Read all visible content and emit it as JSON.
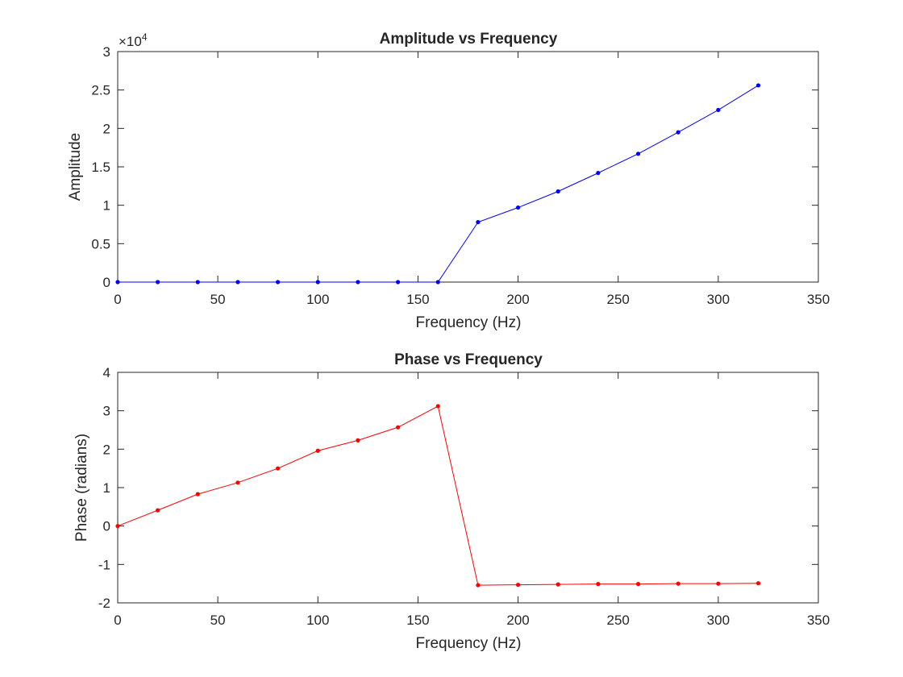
{
  "chart_data": [
    {
      "type": "line",
      "title": "Amplitude vs Frequency",
      "xlabel": "Frequency (Hz)",
      "ylabel": "Amplitude",
      "xlim": [
        0,
        350
      ],
      "ylim": [
        0,
        30000
      ],
      "x_ticks": [
        0,
        50,
        100,
        150,
        200,
        250,
        300,
        350
      ],
      "x_tick_labels": [
        "0",
        "50",
        "100",
        "150",
        "200",
        "250",
        "300",
        "350"
      ],
      "y_ticks": [
        0,
        5000,
        10000,
        15000,
        20000,
        25000,
        30000
      ],
      "y_tick_labels": [
        "0",
        "0.5",
        "1",
        "1.5",
        "2",
        "2.5",
        "3"
      ],
      "y_multiplier_label": "×10",
      "y_multiplier_exponent": "4",
      "grid": false,
      "marker": "dot",
      "color": "#0000ff",
      "series": [
        {
          "x": [
            0,
            20,
            40,
            60,
            80,
            100,
            120,
            140,
            160,
            180,
            200,
            220,
            240,
            260,
            280,
            300,
            320
          ],
          "values": [
            0,
            0,
            0,
            0,
            0,
            0,
            0,
            0,
            0,
            7800,
            9700,
            11800,
            14200,
            16700,
            19500,
            22400,
            25600
          ]
        }
      ]
    },
    {
      "type": "line",
      "title": "Phase vs Frequency",
      "xlabel": "Frequency (Hz)",
      "ylabel": "Phase (radians)",
      "xlim": [
        0,
        350
      ],
      "ylim": [
        -2,
        4
      ],
      "x_ticks": [
        0,
        50,
        100,
        150,
        200,
        250,
        300,
        350
      ],
      "x_tick_labels": [
        "0",
        "50",
        "100",
        "150",
        "200",
        "250",
        "300",
        "350"
      ],
      "y_ticks": [
        -2,
        -1,
        0,
        1,
        2,
        3,
        4
      ],
      "y_tick_labels": [
        "-2",
        "-1",
        "0",
        "1",
        "2",
        "3",
        "4"
      ],
      "grid": false,
      "marker": "dot",
      "color": "#ff0000",
      "series": [
        {
          "x": [
            0,
            20,
            40,
            60,
            80,
            100,
            120,
            140,
            160,
            180,
            200,
            220,
            240,
            260,
            280,
            300,
            320
          ],
          "values": [
            0,
            0.41,
            0.83,
            1.13,
            1.5,
            1.96,
            2.23,
            2.57,
            3.12,
            -1.54,
            -1.53,
            -1.52,
            -1.51,
            -1.51,
            -1.5,
            -1.5,
            -1.49
          ]
        }
      ]
    }
  ]
}
